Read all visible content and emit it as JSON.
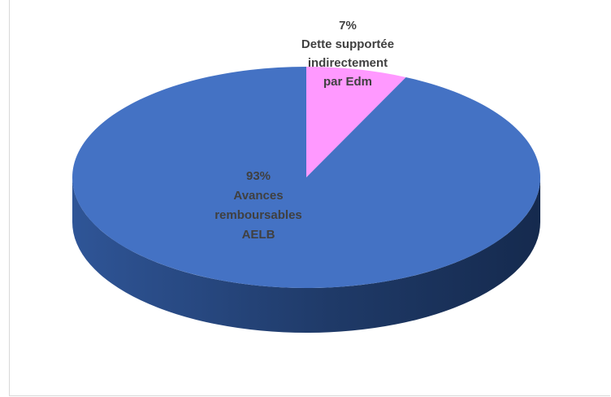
{
  "chart_data": {
    "type": "pie",
    "variant": "3d",
    "slices": [
      {
        "label_lines": [
          "Avances",
          "remboursables",
          "AELB"
        ],
        "percent_label": "93%",
        "value": 93,
        "color": "#4472c4"
      },
      {
        "label_lines": [
          "Dette supportée",
          "indirectement",
          "par Edm"
        ],
        "percent_label": "7%",
        "value": 7,
        "color": "#ff99ff"
      }
    ],
    "legend": "none"
  }
}
